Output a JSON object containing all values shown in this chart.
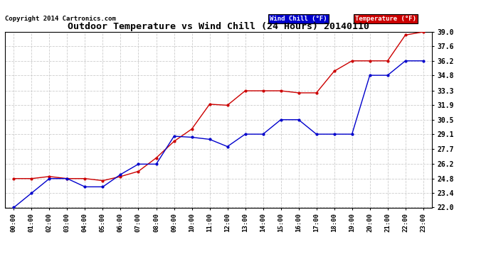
{
  "title": "Outdoor Temperature vs Wind Chill (24 Hours) 20140110",
  "copyright": "Copyright 2014 Cartronics.com",
  "background_color": "#ffffff",
  "grid_color": "#cccccc",
  "ylim": [
    22.0,
    39.0
  ],
  "yticks": [
    22.0,
    23.4,
    24.8,
    26.2,
    27.7,
    29.1,
    30.5,
    31.9,
    33.3,
    34.8,
    36.2,
    37.6,
    39.0
  ],
  "hours": [
    "00:00",
    "01:00",
    "02:00",
    "03:00",
    "04:00",
    "05:00",
    "06:00",
    "07:00",
    "08:00",
    "09:00",
    "10:00",
    "11:00",
    "12:00",
    "13:00",
    "14:00",
    "15:00",
    "16:00",
    "17:00",
    "18:00",
    "19:00",
    "20:00",
    "21:00",
    "22:00",
    "23:00"
  ],
  "temperature": [
    24.8,
    24.8,
    25.0,
    24.8,
    24.8,
    24.6,
    25.0,
    25.5,
    26.8,
    28.4,
    29.6,
    32.0,
    31.9,
    33.3,
    33.3,
    33.3,
    33.1,
    33.1,
    35.2,
    36.2,
    36.2,
    36.2,
    38.7,
    39.0
  ],
  "wind_chill": [
    22.0,
    23.4,
    24.8,
    24.8,
    24.0,
    24.0,
    25.2,
    26.2,
    26.2,
    28.9,
    28.8,
    28.6,
    27.9,
    29.1,
    29.1,
    30.5,
    30.5,
    29.1,
    29.1,
    29.1,
    34.8,
    34.8,
    36.2,
    36.2
  ],
  "temp_color": "#cc0000",
  "wind_color": "#0000cc",
  "legend_wind_bg": "#0000cc",
  "legend_temp_bg": "#cc0000",
  "legend_wind_text": "Wind Chill (°F)",
  "legend_temp_text": "Temperature (°F)"
}
